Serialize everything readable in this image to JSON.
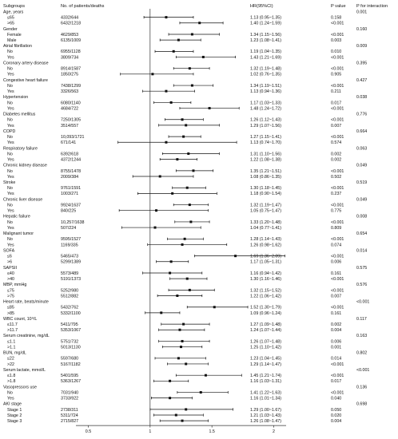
{
  "headers": {
    "subgroups": "Subgroups",
    "n": "No. of patients/deaths",
    "hr": "HR(95%CI)",
    "p": "P value",
    "pint": "P for interaction"
  },
  "chart_data": {
    "type": "forest",
    "xlim": [
      0.4,
      2.1
    ],
    "xticks": [
      0.5,
      1,
      1.5,
      2
    ],
    "reference_line": 1,
    "rows": [
      {
        "label": "Age, years",
        "kind": "group",
        "pint": "0.001"
      },
      {
        "label": "≤65",
        "kind": "item",
        "n": "4332/644",
        "hrtext": "1.13 (0.95~1.35)",
        "p": "0.158",
        "hr": 1.13,
        "lo": 0.95,
        "hi": 1.35
      },
      {
        "label": ">65",
        "kind": "item",
        "n": "6432/1218",
        "hrtext": "1.40 (1.24~1.59)",
        "p": "<0.001",
        "hr": 1.4,
        "lo": 1.24,
        "hi": 1.59
      },
      {
        "label": "Gender",
        "kind": "group",
        "pint": "0.160"
      },
      {
        "label": "Female",
        "kind": "item",
        "n": "4629/853",
        "hrtext": "1.34 (1.15~1.56)",
        "p": "<0.001",
        "hr": 1.34,
        "lo": 1.15,
        "hi": 1.56
      },
      {
        "label": "Male",
        "kind": "item",
        "n": "6135/1009",
        "hrtext": "1.23 (1.08~1.41)",
        "p": "0.003",
        "hr": 1.23,
        "lo": 1.08,
        "hi": 1.41
      },
      {
        "label": "Atrial fibrillation",
        "kind": "group",
        "pint": "0.009"
      },
      {
        "label": "No",
        "kind": "item",
        "n": "6955/1128",
        "hrtext": "1.19 (1.04~1.35)",
        "p": "0.010",
        "hr": 1.19,
        "lo": 1.04,
        "hi": 1.35
      },
      {
        "label": "Yes",
        "kind": "item",
        "n": "3809/734",
        "hrtext": "1.43 (1.21~1.69)",
        "p": "<0.001",
        "hr": 1.43,
        "lo": 1.21,
        "hi": 1.69
      },
      {
        "label": "Coronary artery disease",
        "kind": "group",
        "pint": "0.395"
      },
      {
        "label": "No",
        "kind": "item",
        "n": "8914/1587",
        "hrtext": "1.32 (1.19~1.48)",
        "p": "<0.001",
        "hr": 1.32,
        "lo": 1.19,
        "hi": 1.48
      },
      {
        "label": "Yes",
        "kind": "item",
        "n": "1850/275",
        "hrtext": "1.02 (0.76~1.35)",
        "p": "0.905",
        "hr": 1.02,
        "lo": 0.76,
        "hi": 1.35
      },
      {
        "label": "Congestive heart failure",
        "kind": "group",
        "pint": "0.427"
      },
      {
        "label": "No",
        "kind": "item",
        "n": "7438/1299",
        "hrtext": "1.34 (1.19~1.51)",
        "p": "<0.001",
        "hr": 1.34,
        "lo": 1.19,
        "hi": 1.51
      },
      {
        "label": "Yes",
        "kind": "item",
        "n": "3326/563",
        "hrtext": "1.13 (0.94~1.36)",
        "p": "0.211",
        "hr": 1.13,
        "lo": 0.94,
        "hi": 1.36
      },
      {
        "label": "Hypertension",
        "kind": "group",
        "pint": "0.038"
      },
      {
        "label": "No",
        "kind": "item",
        "n": "6080/1140",
        "hrtext": "1.17 (1.03~1.33)",
        "p": "0.017",
        "hr": 1.17,
        "lo": 1.03,
        "hi": 1.33
      },
      {
        "label": "Yes",
        "kind": "item",
        "n": "4684/722",
        "hrtext": "1.48 (1.24~1.72)",
        "p": "<0.001",
        "hr": 1.48,
        "lo": 1.24,
        "hi": 1.72
      },
      {
        "label": "Diabetes mellitus",
        "kind": "group",
        "pint": "0.776"
      },
      {
        "label": "No",
        "kind": "item",
        "n": "7250/1305",
        "hrtext": "1.26 (1.12~1.43)",
        "p": "<0.001",
        "hr": 1.26,
        "lo": 1.12,
        "hi": 1.43
      },
      {
        "label": "Yes",
        "kind": "item",
        "n": "3514/557",
        "hrtext": "1.29 (1.07~1.56)",
        "p": "0.007",
        "hr": 1.29,
        "lo": 1.07,
        "hi": 1.56
      },
      {
        "label": "COPD",
        "kind": "group",
        "pint": "0.664"
      },
      {
        "label": "No",
        "kind": "item",
        "n": "10,093/1721",
        "hrtext": "1.27 (1.15~1.41)",
        "p": "<0.001",
        "hr": 1.27,
        "lo": 1.15,
        "hi": 1.41
      },
      {
        "label": "Yes",
        "kind": "item",
        "n": "671/141",
        "hrtext": "1.13 (0.74~1.70)",
        "p": "0.574",
        "hr": 1.13,
        "lo": 0.74,
        "hi": 1.7
      },
      {
        "label": "Respiratory failure",
        "kind": "group",
        "pint": "0.063"
      },
      {
        "label": "No",
        "kind": "item",
        "n": "6392/618",
        "hrtext": "1.31 (1.10~1.56)",
        "p": "0.002",
        "hr": 1.31,
        "lo": 1.1,
        "hi": 1.56
      },
      {
        "label": "Yes",
        "kind": "item",
        "n": "4372/1244",
        "hrtext": "1.22 (1.08~1.38)",
        "p": "0.002",
        "hr": 1.22,
        "lo": 1.08,
        "hi": 1.38
      },
      {
        "label": "Chronic kidney disease",
        "kind": "group",
        "pint": "0.049"
      },
      {
        "label": "No",
        "kind": "item",
        "n": "8755/1478",
        "hrtext": "1.35 (1.21~1.51)",
        "p": "<0.001",
        "hr": 1.35,
        "lo": 1.21,
        "hi": 1.51
      },
      {
        "label": "Yes",
        "kind": "item",
        "n": "2009/384",
        "hrtext": "1.08 (0.86~1.35)",
        "p": "0.502",
        "hr": 1.08,
        "lo": 0.86,
        "hi": 1.35
      },
      {
        "label": "Stroke",
        "kind": "group",
        "pint": "0.519"
      },
      {
        "label": "No",
        "kind": "item",
        "n": "9761/1591",
        "hrtext": "1.30 (1.18~1.45)",
        "p": "<0.001",
        "hr": 1.3,
        "lo": 1.18,
        "hi": 1.45
      },
      {
        "label": "Yes",
        "kind": "item",
        "n": "1003/271",
        "hrtext": "1.18 (0.90~1.54)",
        "p": "0.237",
        "hr": 1.18,
        "lo": 0.9,
        "hi": 1.54
      },
      {
        "label": "Chronic liver disease",
        "kind": "group",
        "pint": "0.049"
      },
      {
        "label": "No",
        "kind": "item",
        "n": "9924/1637",
        "hrtext": "1.32 (1.19~1.47)",
        "p": "<0.001",
        "hr": 1.32,
        "lo": 1.19,
        "hi": 1.47
      },
      {
        "label": "Yes",
        "kind": "item",
        "n": "840/225",
        "hrtext": "1.05 (0.75~1.47)",
        "p": "0.775",
        "hr": 1.05,
        "lo": 0.75,
        "hi": 1.47
      },
      {
        "label": "Hepatic failure",
        "kind": "group",
        "pint": "0.008"
      },
      {
        "label": "No",
        "kind": "item",
        "n": "10,257/1638",
        "hrtext": "1.33 (1.20~1.48)",
        "p": "<0.001",
        "hr": 1.33,
        "lo": 1.2,
        "hi": 1.48
      },
      {
        "label": "Yes",
        "kind": "item",
        "n": "507/224",
        "hrtext": "1.04 (0.77~1.41)",
        "p": "0.809",
        "hr": 1.04,
        "lo": 0.77,
        "hi": 1.41
      },
      {
        "label": "Malignant tumor",
        "kind": "group",
        "pint": "0.654"
      },
      {
        "label": "No",
        "kind": "item",
        "n": "9595/1527",
        "hrtext": "1.28 (1.14~1.43)",
        "p": "<0.001",
        "hr": 1.28,
        "lo": 1.14,
        "hi": 1.43
      },
      {
        "label": "Yes",
        "kind": "item",
        "n": "1169/335",
        "hrtext": "1.26 (0.98~1.62)",
        "p": "0.074",
        "hr": 1.26,
        "lo": 0.98,
        "hi": 1.62
      },
      {
        "label": "SOFA",
        "kind": "group",
        "pint": "0.014"
      },
      {
        "label": "≤6",
        "kind": "item",
        "n": "5465/473",
        "hrtext": "1.69 (1.36~2.09)",
        "p": "<0.001",
        "hr": 1.69,
        "lo": 1.36,
        "hi": 2.09
      },
      {
        "label": ">6",
        "kind": "item",
        "n": "5299/1389",
        "hrtext": "1.17 (1.05~1.31)",
        "p": "0.006",
        "hr": 1.17,
        "lo": 1.05,
        "hi": 1.31
      },
      {
        "label": "SAPSII",
        "kind": "group",
        "pint": "0.575"
      },
      {
        "label": "≤40",
        "kind": "item",
        "n": "5573/489",
        "hrtext": "1.16 (0.94~1.42)",
        "p": "0.161",
        "hr": 1.16,
        "lo": 0.94,
        "hi": 1.42
      },
      {
        "label": ">40",
        "kind": "item",
        "n": "5191/1373",
        "hrtext": "1.30 (1.16~1.46)",
        "p": "<0.001",
        "hr": 1.3,
        "lo": 1.16,
        "hi": 1.46
      },
      {
        "label": "MBP, mmHg",
        "kind": "group",
        "pint": "0.576"
      },
      {
        "label": "≤75",
        "kind": "item",
        "n": "5252/980",
        "hrtext": "1.32 (1.15~1.52)",
        "p": "<0.001",
        "hr": 1.32,
        "lo": 1.15,
        "hi": 1.52
      },
      {
        "label": ">75",
        "kind": "item",
        "n": "5512/882",
        "hrtext": "1.22 (1.06~1.42)",
        "p": "0.007",
        "hr": 1.22,
        "lo": 1.06,
        "hi": 1.42
      },
      {
        "label": "Heart rate, beats/minute",
        "kind": "group",
        "pint": "<0.001"
      },
      {
        "label": "≤85",
        "kind": "item",
        "n": "5432/762",
        "hrtext": "1.52 (1.30~1.79)",
        "p": "<0.001",
        "hr": 1.52,
        "lo": 1.3,
        "hi": 1.79
      },
      {
        "label": ">85",
        "kind": "item",
        "n": "5332/1100",
        "hrtext": "1.09 (0.96~1.24)",
        "p": "0.161",
        "hr": 1.09,
        "lo": 0.96,
        "hi": 1.24
      },
      {
        "label": "WBC count, 10⁹/L",
        "kind": "group",
        "pint": "0.117"
      },
      {
        "label": "≤11.7",
        "kind": "item",
        "n": "5411/795",
        "hrtext": "1.27 (1.09~1.48)",
        "p": "0.002",
        "hr": 1.27,
        "lo": 1.09,
        "hi": 1.48
      },
      {
        "label": ">11.7",
        "kind": "item",
        "n": "5353/1067",
        "hrtext": "1.24 (1.07~1.44)",
        "p": "0.004",
        "hr": 1.24,
        "lo": 1.07,
        "hi": 1.44
      },
      {
        "label": "Serum creatinine, mg/dL",
        "kind": "group",
        "pint": "0.163"
      },
      {
        "label": "≤1.1",
        "kind": "item",
        "n": "5751/732",
        "hrtext": "1.26 (1.07~1.48)",
        "p": "0.006",
        "hr": 1.26,
        "lo": 1.07,
        "hi": 1.48
      },
      {
        "label": ">1.1",
        "kind": "item",
        "n": "5013/1130",
        "hrtext": "1.25 (1.10~1.42)",
        "p": "0.001",
        "hr": 1.25,
        "lo": 1.1,
        "hi": 1.42
      },
      {
        "label": "BUN, mg/dL",
        "kind": "group",
        "pint": "0.802"
      },
      {
        "label": "≤22",
        "kind": "item",
        "n": "5597/680",
        "hrtext": "1.23 (1.04~1.45)",
        "p": "0.014",
        "hr": 1.23,
        "lo": 1.04,
        "hi": 1.45
      },
      {
        "label": ">22",
        "kind": "item",
        "n": "5167/1182",
        "hrtext": "1.29 (1.14~1.47)",
        "p": "<0.001",
        "hr": 1.29,
        "lo": 1.14,
        "hi": 1.47
      },
      {
        "label": "Serum lactate, mmol/L",
        "kind": "group",
        "pint": "<0.001"
      },
      {
        "label": "≤1.8",
        "kind": "item",
        "n": "5401/595",
        "hrtext": "1.45 (1.21~1.74)",
        "p": "<0.001",
        "hr": 1.45,
        "lo": 1.21,
        "hi": 1.74
      },
      {
        "label": ">1.8",
        "kind": "item",
        "n": "5363/1267",
        "hrtext": "1.16 (1.03~1.31)",
        "p": "0.017",
        "hr": 1.16,
        "lo": 1.03,
        "hi": 1.31
      },
      {
        "label": "Vasopressors use",
        "kind": "group",
        "pint": "0.136"
      },
      {
        "label": "No",
        "kind": "item",
        "n": "7031/940",
        "hrtext": "1.41 (1.22~1.63)",
        "p": "<0.001",
        "hr": 1.41,
        "lo": 1.22,
        "hi": 1.63
      },
      {
        "label": "Yes",
        "kind": "item",
        "n": "3733/922",
        "hrtext": "1.16 (1.01~1.34)",
        "p": "0.040",
        "hr": 1.16,
        "lo": 1.01,
        "hi": 1.34
      },
      {
        "label": "AKI stage",
        "kind": "group",
        "pint": "0.698"
      },
      {
        "label": "Stage 1",
        "kind": "item",
        "n": "2738/311",
        "hrtext": "1.29 (1.00~1.67)",
        "p": "0.050",
        "hr": 1.29,
        "lo": 1.0,
        "hi": 1.67
      },
      {
        "label": "Stage 2",
        "kind": "item",
        "n": "5311/724",
        "hrtext": "1.21 (1.03~1.43)",
        "p": "0.020",
        "hr": 1.21,
        "lo": 1.03,
        "hi": 1.43
      },
      {
        "label": "Stage 3",
        "kind": "item",
        "n": "2715/827",
        "hrtext": "1.26 (1.08~1.47)",
        "p": "0.004",
        "hr": 1.26,
        "lo": 1.08,
        "hi": 1.47
      }
    ]
  }
}
